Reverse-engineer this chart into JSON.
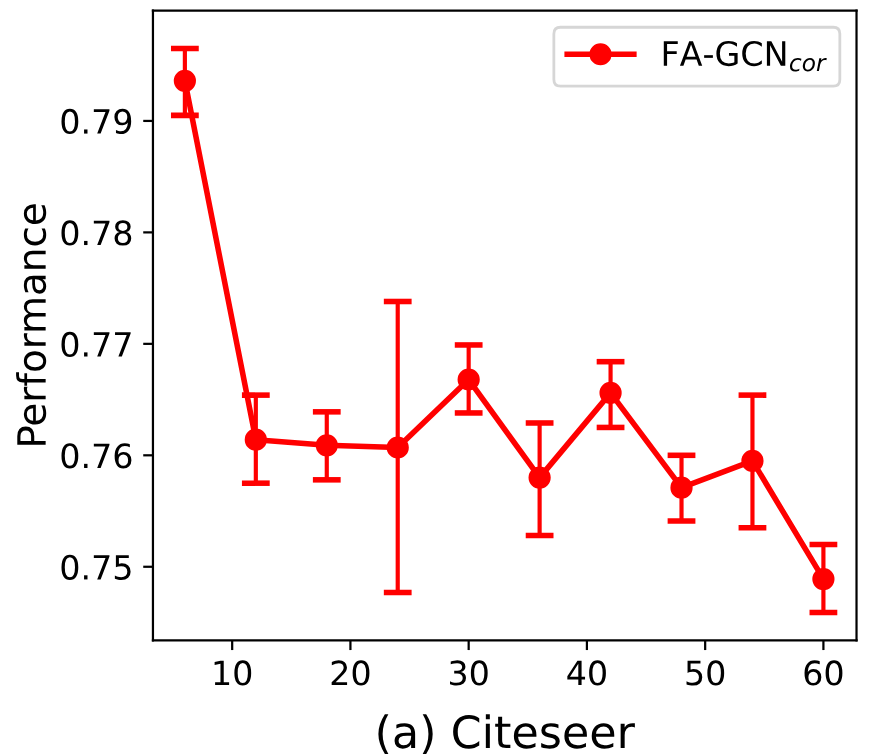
{
  "chart_data": {
    "type": "line",
    "xlabel": "(a) Citeseer",
    "ylabel": "Performance",
    "x": [
      6,
      12,
      18,
      24,
      30,
      36,
      42,
      48,
      54,
      60
    ],
    "series": [
      {
        "name": "FA-GCN$_{cor}$",
        "color": "#ff0000",
        "values": [
          0.7936,
          0.7614,
          0.7609,
          0.7607,
          0.7668,
          0.758,
          0.7656,
          0.7571,
          0.7595,
          0.7489
        ],
        "errors": [
          [
            0.7905,
            0.7965
          ],
          [
            0.7575,
            0.7654
          ],
          [
            0.7578,
            0.7639
          ],
          [
            0.7477,
            0.7738
          ],
          [
            0.7638,
            0.7699
          ],
          [
            0.7528,
            0.7629
          ],
          [
            0.7625,
            0.7684
          ],
          [
            0.7541,
            0.76
          ],
          [
            0.7535,
            0.7654
          ],
          [
            0.7459,
            0.752
          ]
        ]
      }
    ],
    "xlim": [
      3.3,
      62.8
    ],
    "ylim": [
      0.7434,
      0.7999
    ],
    "xticks": [
      10,
      20,
      30,
      40,
      50,
      60
    ],
    "yticks": [
      0.75,
      0.76,
      0.77,
      0.78,
      0.79
    ],
    "marker": "circle",
    "line_style": "solid",
    "grid": false,
    "legend": "top right"
  }
}
